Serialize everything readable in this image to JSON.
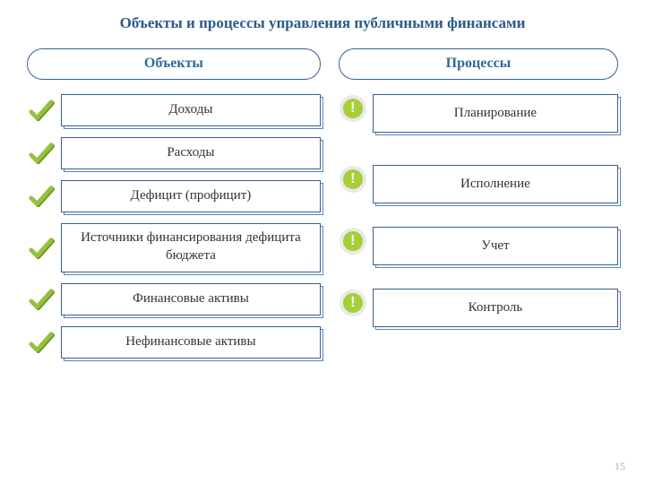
{
  "title": "Объекты и процессы управления публичными финансами",
  "colors": {
    "header_accent": "#2f6a96",
    "border": "#365f91",
    "border_secondary": "#5b85b3",
    "title_color": "#2b5a88",
    "check_green": "#95c23d",
    "check_shadow": "#6d9b1f",
    "excl_bg": "#a6ce39",
    "excl_text": "#ffffff",
    "page_num_color": "#98b4cd"
  },
  "left": {
    "header": "Объекты",
    "items": [
      {
        "label": "Доходы"
      },
      {
        "label": "Расходы"
      },
      {
        "label": "Дефицит (профицит)"
      },
      {
        "label": "Источники финансирования дефицита бюджета",
        "tall": true
      },
      {
        "label": "Финансовые активы"
      },
      {
        "label": "Нефинансовые активы"
      }
    ]
  },
  "right": {
    "header": "Процессы",
    "items": [
      {
        "label": "Планирование"
      },
      {
        "label": "Исполнение"
      },
      {
        "label": "Учет"
      },
      {
        "label": "Контроль"
      }
    ]
  },
  "page_number": "15"
}
